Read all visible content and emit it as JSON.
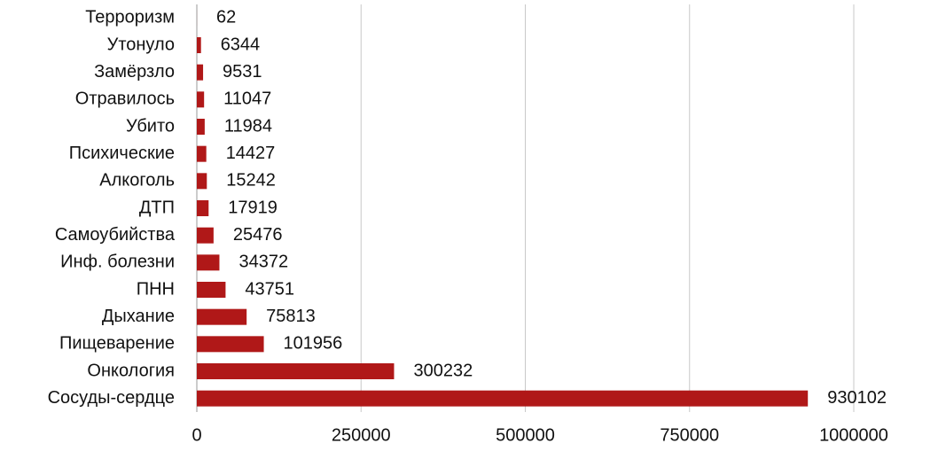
{
  "chart_data": {
    "type": "bar",
    "orientation": "horizontal",
    "categories": [
      "Терроризм",
      "Утонуло",
      "Замёрзло",
      "Отравилось",
      "Убито",
      "Психические",
      "Алкоголь",
      "ДТП",
      "Самоубийства",
      "Инф. болезни",
      "ПНН",
      "Дыхание",
      "Пищеварение",
      "Онкология",
      "Сосуды-сердце"
    ],
    "values": [
      62,
      6344,
      9531,
      11047,
      11984,
      14427,
      15242,
      17919,
      25476,
      34372,
      43751,
      75813,
      101956,
      300232,
      930102
    ],
    "color": "#b01818",
    "xlim": [
      0,
      1000000
    ],
    "xticks": [
      0,
      250000,
      500000,
      750000,
      1000000
    ],
    "grid": true
  }
}
